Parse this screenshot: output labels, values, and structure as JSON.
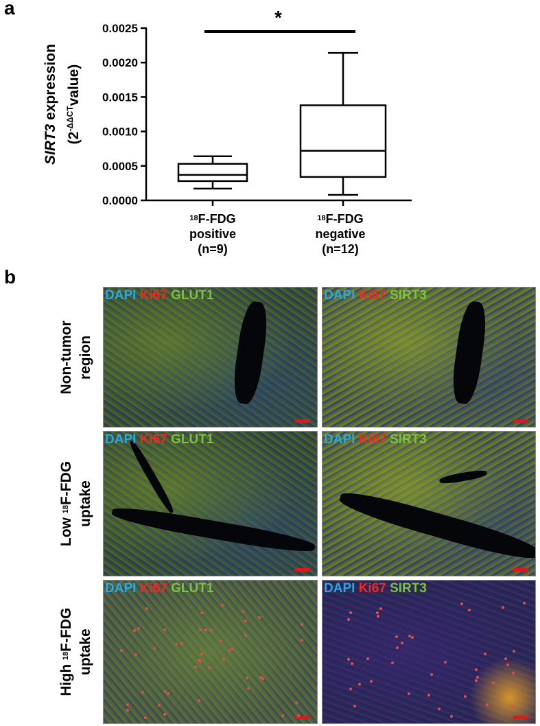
{
  "panel_a": {
    "letter": "a",
    "ylabel_italic": "SIRT3",
    "ylabel_rest": " expression",
    "ylabel_line2_base": "(2",
    "ylabel_line2_exp": "-ΔΔCT",
    "ylabel_line2_end": "value)",
    "significance": "*",
    "categories": [
      {
        "sup": "18",
        "line1": "F-FDG",
        "line2": "positive",
        "line3": "(n=9)"
      },
      {
        "sup": "18",
        "line1": "F-FDG",
        "line2": "negative",
        "line3": "(n=12)"
      }
    ]
  },
  "chart_data": {
    "type": "box",
    "ylim": [
      0,
      0.0025
    ],
    "yticks": [
      "0.0000",
      "0.0005",
      "0.0010",
      "0.0015",
      "0.0020",
      "0.0025"
    ],
    "ytick_values": [
      0,
      0.0005,
      0.001,
      0.0015,
      0.002,
      0.0025
    ],
    "categories": [
      "18F-FDG positive (n=9)",
      "18F-FDG negative (n=12)"
    ],
    "boxes": [
      {
        "min": 0.00017,
        "q1": 0.00028,
        "median": 0.00037,
        "q3": 0.00053,
        "max": 0.00064
      },
      {
        "min": 8e-05,
        "q1": 0.00034,
        "median": 0.00072,
        "q3": 0.00138,
        "max": 0.00214
      }
    ],
    "significance_bracket": {
      "from": 0,
      "to": 1,
      "label": "*"
    }
  },
  "panel_b": {
    "letter": "b",
    "label_dapi": "DAPI",
    "label_ki67": "Ki67",
    "label_glut1": "GLUT1",
    "label_sirt3": "SIRT3",
    "rows": [
      {
        "line1": "Non-tumor",
        "line2": "region",
        "sup": ""
      },
      {
        "line1_pre": "Low ",
        "sup": "18",
        "line1_post": "F-FDG",
        "line2": "uptake"
      },
      {
        "line1_pre": "High ",
        "sup": "18",
        "line1_post": "F-FDG",
        "line2": "uptake"
      }
    ]
  },
  "colors": {
    "dapi": "#29a9e0",
    "ki67": "#ee2a24",
    "green": "#7cc142",
    "scalebar": "#e8141c"
  }
}
